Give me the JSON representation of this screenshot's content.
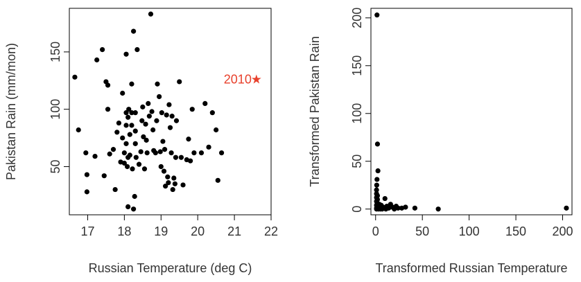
{
  "chart_data": [
    {
      "type": "scatter",
      "xlabel": "Russian Temperature (deg C)",
      "ylabel": "Pakistan Rain (mm/mon)",
      "xlim": [
        16.5,
        22
      ],
      "ylim": [
        8,
        188
      ],
      "xticks": [
        17,
        18,
        19,
        20,
        21,
        22
      ],
      "yticks": [
        50,
        100,
        150
      ],
      "grid": false,
      "colors": {
        "points": "#000000",
        "annotation": "#e8412c"
      },
      "annotation": {
        "text": "2010",
        "marker": "★",
        "x": 21.6,
        "y": 126
      },
      "points": [
        [
          16.65,
          128
        ],
        [
          16.75,
          82
        ],
        [
          16.95,
          62
        ],
        [
          16.98,
          43
        ],
        [
          16.98,
          28
        ],
        [
          17.2,
          59
        ],
        [
          17.25,
          143
        ],
        [
          17.4,
          152
        ],
        [
          17.45,
          42
        ],
        [
          17.5,
          124
        ],
        [
          17.55,
          121
        ],
        [
          17.55,
          100
        ],
        [
          17.6,
          61
        ],
        [
          17.7,
          65
        ],
        [
          17.75,
          30
        ],
        [
          17.8,
          80
        ],
        [
          17.85,
          88
        ],
        [
          17.9,
          54
        ],
        [
          17.95,
          114
        ],
        [
          17.95,
          75
        ],
        [
          18.0,
          62
        ],
        [
          18.0,
          53
        ],
        [
          18.05,
          148
        ],
        [
          18.05,
          97
        ],
        [
          18.05,
          86
        ],
        [
          18.05,
          70
        ],
        [
          18.08,
          50
        ],
        [
          18.1,
          93
        ],
        [
          18.1,
          58
        ],
        [
          18.1,
          15
        ],
        [
          18.12,
          100
        ],
        [
          18.15,
          78
        ],
        [
          18.15,
          60
        ],
        [
          18.2,
          122
        ],
        [
          18.2,
          97
        ],
        [
          18.2,
          86
        ],
        [
          18.22,
          48
        ],
        [
          18.25,
          168
        ],
        [
          18.25,
          13
        ],
        [
          18.28,
          24
        ],
        [
          18.3,
          97
        ],
        [
          18.3,
          81
        ],
        [
          18.3,
          70
        ],
        [
          18.32,
          58
        ],
        [
          18.35,
          152
        ],
        [
          18.4,
          52
        ],
        [
          18.45,
          63
        ],
        [
          18.48,
          90
        ],
        [
          18.5,
          102
        ],
        [
          18.52,
          76
        ],
        [
          18.55,
          48
        ],
        [
          18.58,
          87
        ],
        [
          18.6,
          73
        ],
        [
          18.62,
          62
        ],
        [
          18.65,
          105
        ],
        [
          18.68,
          94
        ],
        [
          18.72,
          183
        ],
        [
          18.75,
          98
        ],
        [
          18.78,
          82
        ],
        [
          18.8,
          64
        ],
        [
          18.85,
          62
        ],
        [
          18.88,
          90
        ],
        [
          18.9,
          122
        ],
        [
          18.95,
          111
        ],
        [
          18.98,
          63
        ],
        [
          19.0,
          50
        ],
        [
          19.02,
          97
        ],
        [
          19.05,
          72
        ],
        [
          19.08,
          46
        ],
        [
          19.1,
          65
        ],
        [
          19.12,
          33
        ],
        [
          19.15,
          95
        ],
        [
          19.18,
          41
        ],
        [
          19.2,
          36
        ],
        [
          19.22,
          104
        ],
        [
          19.25,
          84
        ],
        [
          19.28,
          62
        ],
        [
          19.3,
          94
        ],
        [
          19.32,
          30
        ],
        [
          19.35,
          40
        ],
        [
          19.38,
          35
        ],
        [
          19.4,
          58
        ],
        [
          19.42,
          90
        ],
        [
          19.5,
          124
        ],
        [
          19.55,
          58
        ],
        [
          19.6,
          34
        ],
        [
          19.7,
          56
        ],
        [
          19.75,
          74
        ],
        [
          19.8,
          55
        ],
        [
          19.85,
          100
        ],
        [
          19.9,
          62
        ],
        [
          20.1,
          62
        ],
        [
          20.2,
          105
        ],
        [
          20.3,
          67
        ],
        [
          20.4,
          97
        ],
        [
          20.5,
          82
        ],
        [
          20.55,
          38
        ],
        [
          20.65,
          62
        ]
      ]
    },
    {
      "type": "scatter",
      "xlabel": "Transformed Russian Temperature",
      "ylabel": "Transformed Pakistan Rain",
      "xlim": [
        -5,
        210
      ],
      "ylim": [
        -6,
        210
      ],
      "xticks": [
        0,
        50,
        100,
        150,
        200
      ],
      "yticks": [
        0,
        50,
        100,
        150,
        200
      ],
      "grid": false,
      "colors": {
        "points": "#000000"
      },
      "points": [
        [
          1.5,
          203
        ],
        [
          2,
          68
        ],
        [
          2.5,
          40
        ],
        [
          1.5,
          31
        ],
        [
          1.2,
          25
        ],
        [
          1,
          20
        ],
        [
          1,
          16
        ],
        [
          1,
          12
        ],
        [
          1,
          8
        ],
        [
          1,
          4
        ],
        [
          1,
          1
        ],
        [
          1,
          0
        ],
        [
          2,
          14
        ],
        [
          2,
          10
        ],
        [
          2,
          6
        ],
        [
          2,
          2
        ],
        [
          3,
          3
        ],
        [
          3,
          0
        ],
        [
          4,
          1
        ],
        [
          4,
          5
        ],
        [
          5,
          0
        ],
        [
          5,
          2
        ],
        [
          6,
          1
        ],
        [
          6,
          4
        ],
        [
          7,
          0
        ],
        [
          8,
          2
        ],
        [
          9,
          1
        ],
        [
          10,
          11
        ],
        [
          11,
          0
        ],
        [
          12,
          3
        ],
        [
          14,
          1
        ],
        [
          16,
          5
        ],
        [
          18,
          2
        ],
        [
          20,
          0
        ],
        [
          22,
          3
        ],
        [
          24,
          1
        ],
        [
          28,
          1
        ],
        [
          32,
          2
        ],
        [
          42,
          1
        ],
        [
          67,
          0
        ],
        [
          204,
          1
        ]
      ]
    }
  ]
}
